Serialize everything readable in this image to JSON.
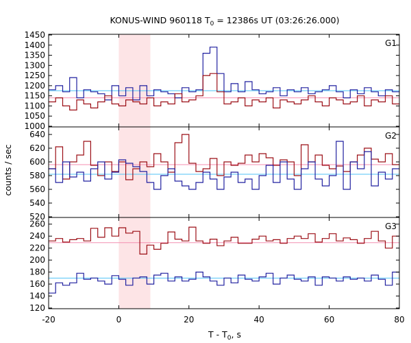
{
  "chart_data": {
    "type": "line",
    "title_main": "KONUS-WIND 960118 T",
    "title_sub": "0",
    "title_rest": " = 12386s UT (03:26:26.000)",
    "xlabel_main": "T - T",
    "xlabel_sub": "0",
    "xlabel_rest": ", s",
    "ylabel": "counts / sec",
    "xlim": [
      -20,
      80
    ],
    "x_ticks": [
      -20,
      0,
      20,
      40,
      60,
      80
    ],
    "bin_width": 2,
    "bin_start": -20,
    "highlight_interval": [
      0,
      9
    ],
    "colors": {
      "high_series": "#9b0d14",
      "low_series": "#1f1f9f",
      "background_level": "#4fc3f7",
      "mean_level": "#f48fb1",
      "highlight": "#fde4e6"
    },
    "panels": [
      {
        "label": "G1",
        "ylim": [
          1000,
          1450
        ],
        "y_ticks": [
          1000,
          1050,
          1100,
          1150,
          1200,
          1250,
          1300,
          1350,
          1400,
          1450
        ],
        "background_level": 1175,
        "mean_level": 1140,
        "series": [
          {
            "color_key": "low_series",
            "values": [
              1180,
              1200,
              1170,
              1240,
              1140,
              1180,
              1170,
              1160,
              1130,
              1200,
              1150,
              1190,
              1130,
              1200,
              1150,
              1180,
              1170,
              1160,
              1140,
              1190,
              1170,
              1180,
              1360,
              1390,
              1260,
              1170,
              1210,
              1170,
              1220,
              1180,
              1160,
              1170,
              1190,
              1150,
              1180,
              1170,
              1190,
              1160,
              1170,
              1180,
              1200,
              1170,
              1140,
              1180,
              1160,
              1190,
              1170,
              1150,
              1180,
              1170
            ]
          },
          {
            "color_key": "high_series",
            "values": [
              1120,
              1140,
              1100,
              1080,
              1130,
              1110,
              1090,
              1120,
              1150,
              1110,
              1100,
              1130,
              1120,
              1110,
              1140,
              1100,
              1120,
              1110,
              1160,
              1120,
              1130,
              1150,
              1250,
              1260,
              1170,
              1110,
              1120,
              1140,
              1100,
              1130,
              1120,
              1140,
              1090,
              1130,
              1120,
              1110,
              1130,
              1150,
              1120,
              1100,
              1140,
              1130,
              1110,
              1120,
              1150,
              1100,
              1130,
              1120,
              1150,
              1110
            ]
          }
        ]
      },
      {
        "label": "G2",
        "ylim": [
          520,
          650
        ],
        "y_ticks": [
          520,
          540,
          560,
          580,
          600,
          620,
          640
        ],
        "background_level": 582,
        "mean_level": 596,
        "series": [
          {
            "color_key": "high_series",
            "values": [
              590,
              622,
              575,
              600,
              610,
              630,
              595,
              580,
              600,
              586,
              600,
              574,
              590,
              600,
              593,
              612,
              600,
              585,
              628,
              640,
              598,
              586,
              590,
              605,
              580,
              600,
              595,
              598,
              610,
              600,
              612,
              606,
              595,
              603,
              600,
              580,
              625,
              600,
              610,
              595,
              590,
              594,
              586,
              600,
              610,
              620,
              604,
              600,
              612,
              596
            ]
          },
          {
            "color_key": "low_series",
            "values": [
              590,
              570,
              600,
              578,
              585,
              572,
              590,
              600,
              575,
              585,
              603,
              598,
              593,
              586,
              570,
              560,
              580,
              590,
              572,
              565,
              560,
              570,
              585,
              575,
              560,
              578,
              585,
              570,
              575,
              560,
              580,
              595,
              570,
              600,
              575,
              560,
              590,
              600,
              575,
              565,
              580,
              630,
              560,
              600,
              590,
              615,
              565,
              585,
              575,
              590
            ]
          }
        ]
      },
      {
        "label": "G3",
        "ylim": [
          120,
          270
        ],
        "y_ticks": [
          120,
          140,
          160,
          180,
          200,
          220,
          240,
          260
        ],
        "background_level": 170,
        "mean_level": 229,
        "series": [
          {
            "color_key": "high_series",
            "values": [
              232,
              236,
              230,
              234,
              236,
              232,
              253,
              238,
              254,
              240,
              254,
              245,
              248,
              210,
              225,
              218,
              228,
              247,
              235,
              232,
              255,
              232,
              228,
              235,
              224,
              232,
              238,
              228,
              228,
              235,
              240,
              232,
              234,
              228,
              236,
              240,
              236,
              244,
              230,
              236,
              244,
              232,
              237,
              234,
              228,
              236,
              248,
              232,
              220,
              240
            ]
          },
          {
            "color_key": "low_series",
            "values": [
              145,
              162,
              158,
              162,
              178,
              168,
              170,
              165,
              160,
              174,
              168,
              158,
              170,
              172,
              160,
              175,
              178,
              165,
              172,
              165,
              168,
              180,
              172,
              165,
              158,
              170,
              162,
              175,
              168,
              165,
              172,
              178,
              160,
              170,
              175,
              168,
              165,
              172,
              158,
              172,
              170,
              165,
              172,
              168,
              170,
              165,
              175,
              168,
              158,
              180
            ]
          }
        ]
      }
    ]
  }
}
